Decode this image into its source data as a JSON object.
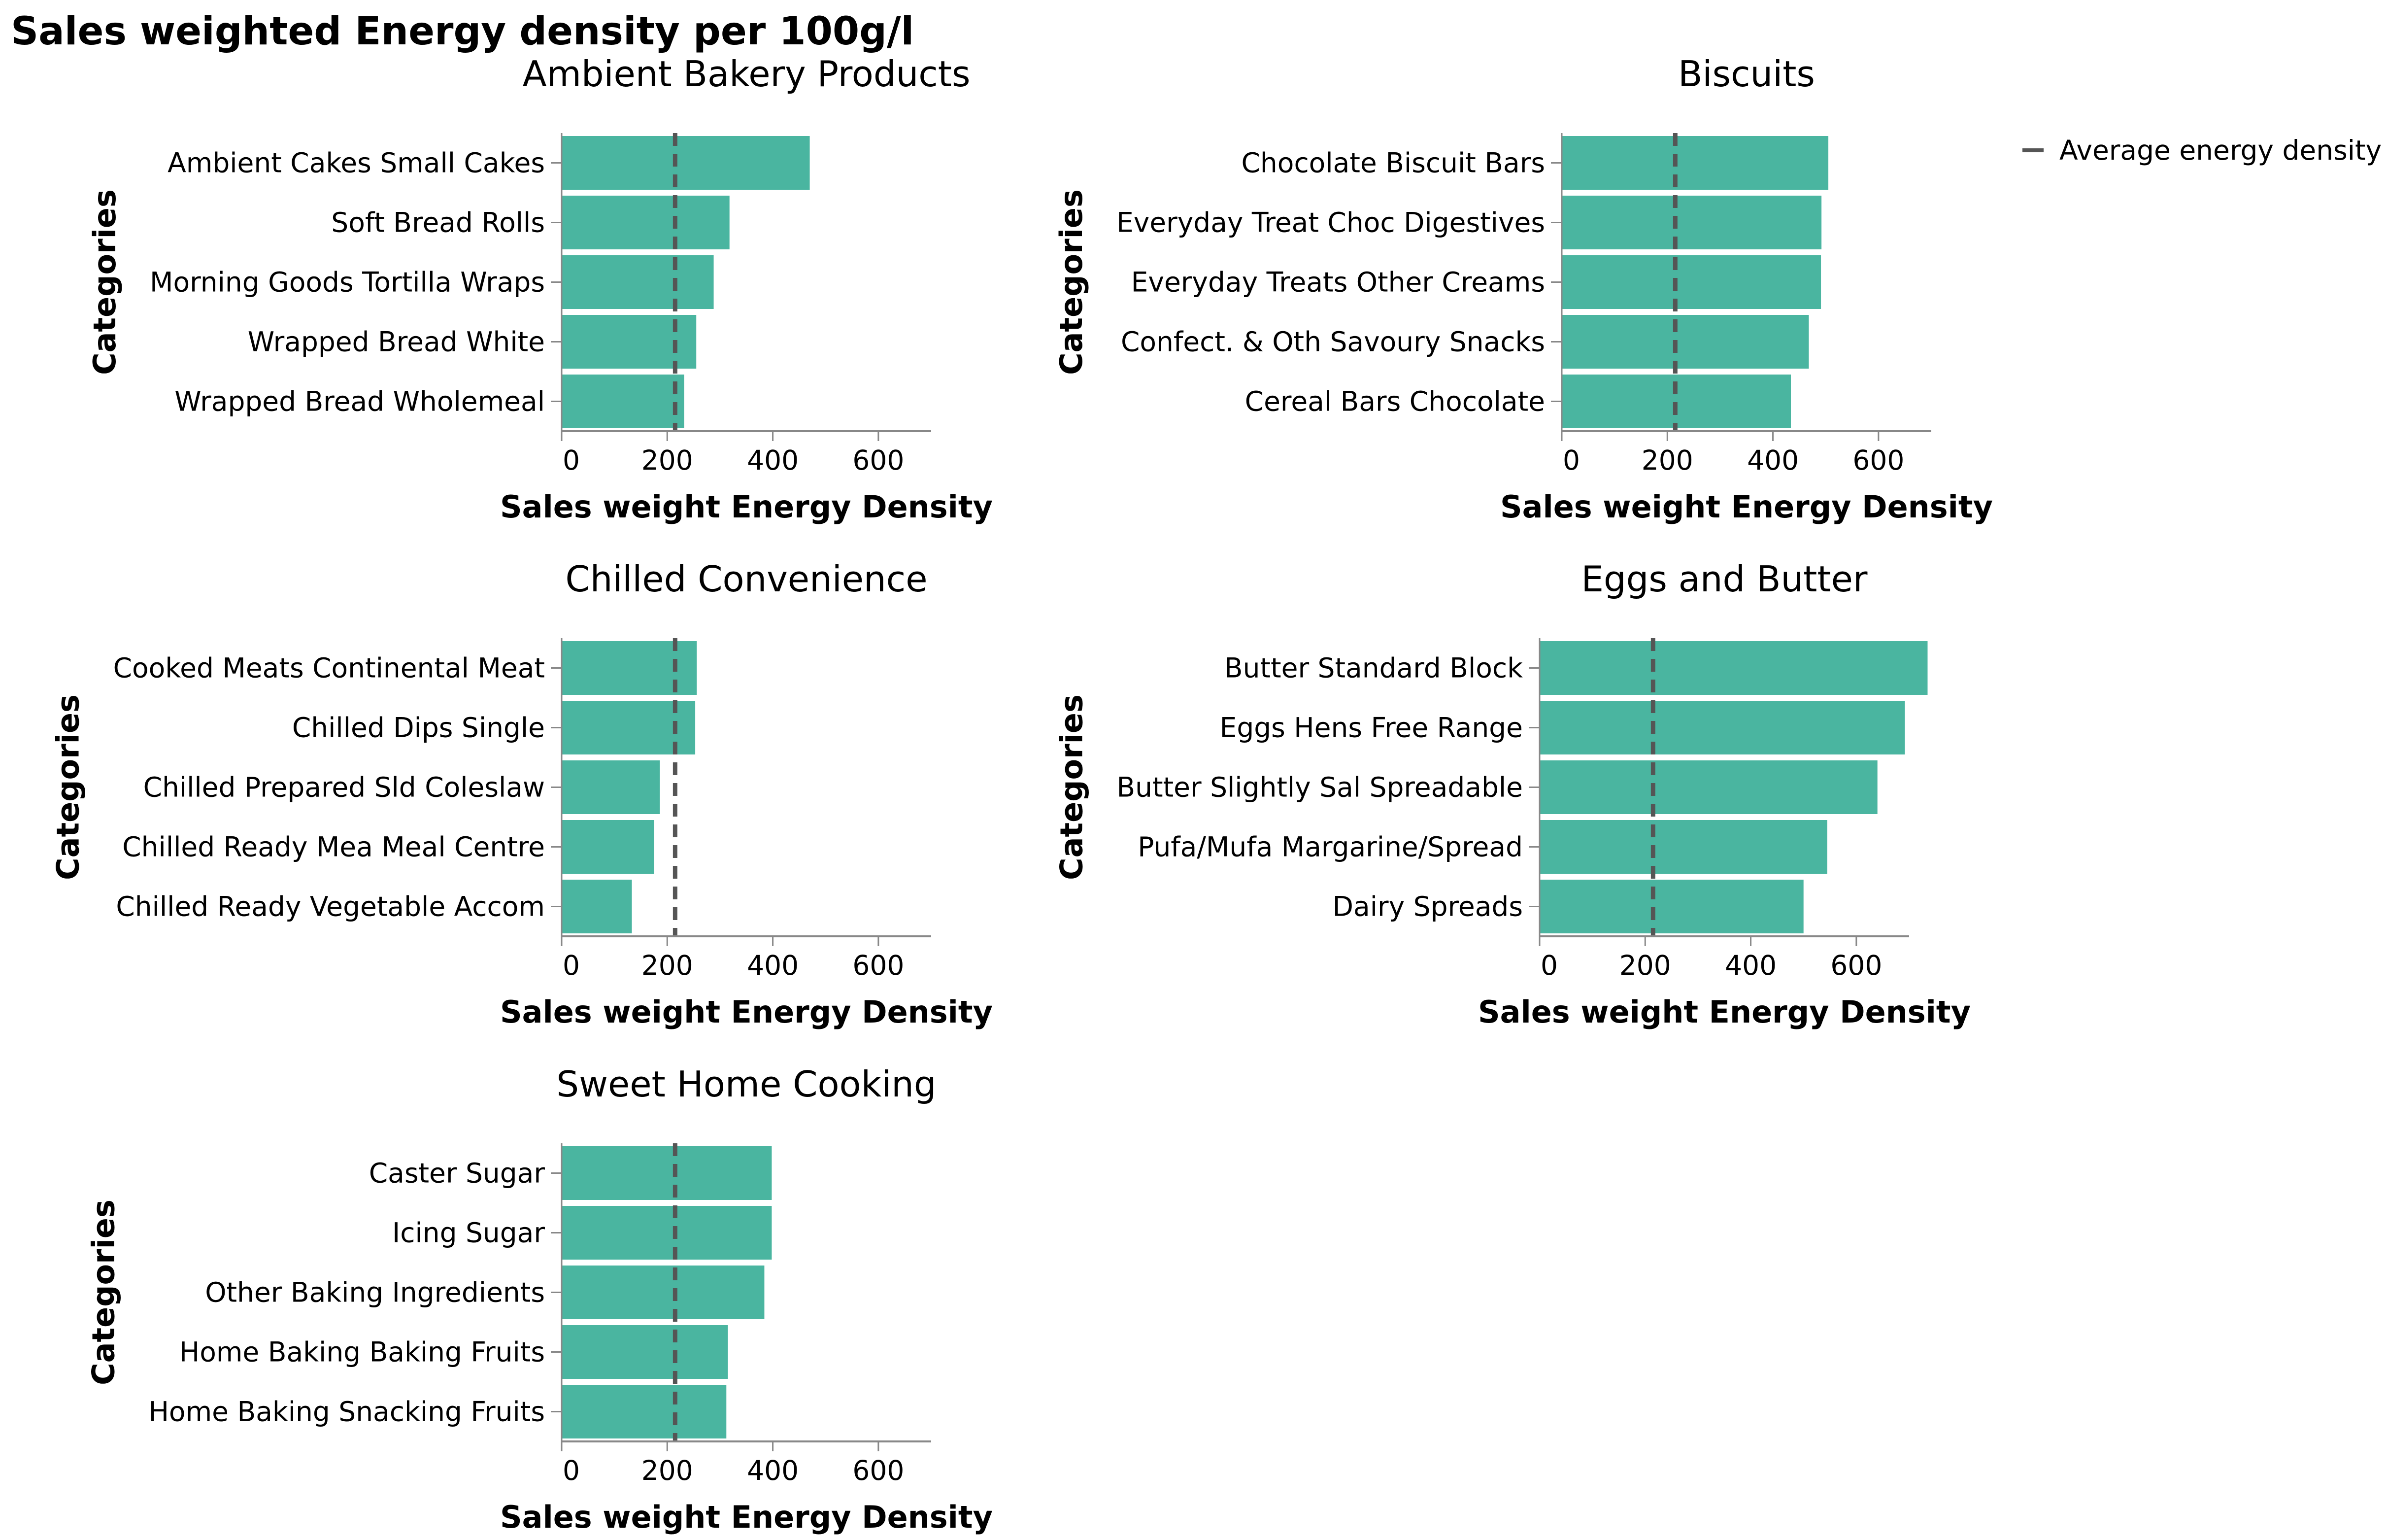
{
  "title": "Sales weighted Energy density per 100g/l",
  "legend": {
    "label": "Average energy density",
    "placement": "top-right"
  },
  "colors": {
    "bar": "#4ab5a0",
    "average_line": "#555555",
    "axis": "#888888"
  },
  "chart_data": [
    {
      "type": "bar",
      "title": "Ambient Bakery Products",
      "xlabel": "Sales weight Energy Density",
      "ylabel": "Categories",
      "xlim": [
        0,
        700
      ],
      "xticks": [
        0,
        200,
        400,
        600
      ],
      "average": 215,
      "categories": [
        "Ambient Cakes Small Cakes",
        "Soft Bread Rolls",
        "Morning Goods Tortilla Wraps",
        "Wrapped Bread White",
        "Wrapped Bread Wholemeal"
      ],
      "values": [
        470,
        318,
        288,
        255,
        232
      ]
    },
    {
      "type": "bar",
      "title": "Biscuits",
      "xlabel": "Sales weight Energy Density",
      "ylabel": "Categories",
      "xlim": [
        0,
        700
      ],
      "xticks": [
        0,
        200,
        400,
        600
      ],
      "average": 215,
      "categories": [
        "Chocolate Biscuit Bars",
        "Everyday Treat Choc Digestives",
        "Everyday Treats Other Creams",
        "Confect. & Oth Savoury Snacks",
        "Cereal Bars Chocolate"
      ],
      "values": [
        505,
        492,
        491,
        468,
        434
      ]
    },
    {
      "type": "bar",
      "title": "Chilled Convenience",
      "xlabel": "Sales weight Energy Density",
      "ylabel": "Categories",
      "xlim": [
        0,
        700
      ],
      "xticks": [
        0,
        200,
        400,
        600
      ],
      "average": 215,
      "categories": [
        "Cooked Meats Continental Meat",
        "Chilled Dips Single",
        "Chilled Prepared Sld Coleslaw",
        "Chilled Ready Mea Meal Centre",
        "Chilled Ready Vegetable Accom"
      ],
      "values": [
        256,
        253,
        186,
        175,
        133
      ]
    },
    {
      "type": "bar",
      "title": "Eggs and Butter",
      "xlabel": "Sales weight Energy Density",
      "ylabel": "Categories",
      "xlim": [
        0,
        700
      ],
      "xticks": [
        0,
        200,
        400,
        600
      ],
      "average": 215,
      "categories": [
        "Butter Standard Block",
        "Eggs Hens Free Range",
        "Butter Slightly Sal Spreadable",
        "Pufa/Mufa Margarine/Spread",
        "Dairy Spreads"
      ],
      "values": [
        735,
        692,
        640,
        545,
        500
      ]
    },
    {
      "type": "bar",
      "title": "Sweet Home Cooking",
      "xlabel": "Sales weight Energy Density",
      "ylabel": "Categories",
      "xlim": [
        0,
        700
      ],
      "xticks": [
        0,
        200,
        400,
        600
      ],
      "average": 215,
      "categories": [
        "Caster Sugar",
        "Icing Sugar",
        "Other Baking Ingredients",
        "Home Baking Baking Fruits",
        "Home Baking Snacking Fruits"
      ],
      "values": [
        398,
        398,
        384,
        315,
        312
      ]
    }
  ]
}
